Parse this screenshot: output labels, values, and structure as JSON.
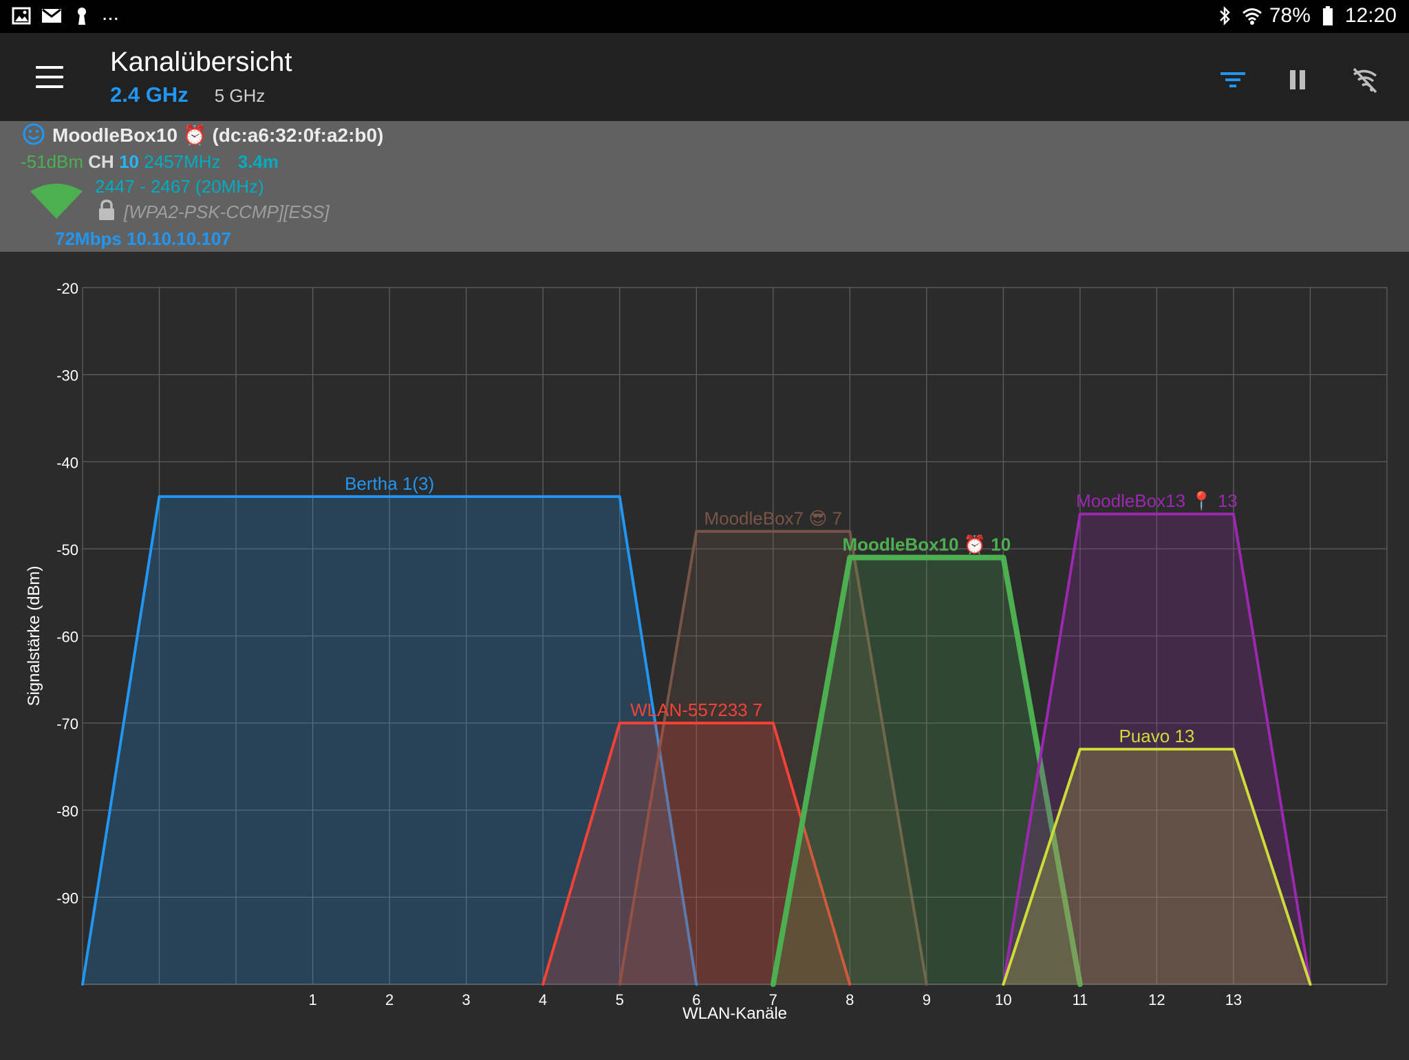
{
  "status_bar": {
    "left_icons": [
      "image-icon",
      "mail-icon",
      "keyhole-icon"
    ],
    "overflow": "...",
    "battery": "78%",
    "time": "12:20"
  },
  "app_bar": {
    "title": "Kanalübersicht",
    "tabs": [
      {
        "label": "2.4 GHz",
        "selected": true
      },
      {
        "label": "5 GHz",
        "selected": false
      }
    ],
    "actions": [
      "filter-icon",
      "pause-icon",
      "wifi-off-icon"
    ]
  },
  "connection": {
    "ssid": "MoodleBox10",
    "alarm_emoji": "⏰",
    "bssid": "(dc:a6:32:0f:a2:b0)",
    "signal": "-51dBm",
    "ch_label": "CH",
    "channel": "10",
    "frequency": "2457MHz",
    "distance": "3.4m",
    "range": "2447 - 2467 (20MHz)",
    "security": "[WPA2-PSK-CCMP][ESS]",
    "rate_ip": "72Mbps 10.10.10.107"
  },
  "colors": {
    "accent": "#2196f3",
    "statusbar_bg": "#000000",
    "appbar_bg": "#212121",
    "panel_bg": "#616161",
    "chart_bg": "#2b2b2b"
  },
  "chart_data": {
    "type": "area",
    "xlabel": "WLAN-Kanäle",
    "ylabel": "Signalstärke (dBm)",
    "xlim": [
      -2,
      15
    ],
    "ylim": [
      -100,
      -20
    ],
    "x_ticks": [
      1,
      2,
      3,
      4,
      5,
      6,
      7,
      8,
      9,
      10,
      11,
      12,
      13
    ],
    "y_ticks": [
      -20,
      -30,
      -40,
      -50,
      -60,
      -70,
      -80,
      -90
    ],
    "grid": true,
    "series": [
      {
        "name": "Bertha 1(3)",
        "label": "Bertha 1(3)",
        "color": "#2196f3",
        "points": [
          [
            -2,
            -100
          ],
          [
            -1,
            -44
          ],
          [
            5,
            -44
          ],
          [
            6,
            -100
          ]
        ],
        "highlight": false
      },
      {
        "name": "MoodleBox7 😎 7",
        "label": "MoodleBox7 😎 7",
        "color": "#795548",
        "points": [
          [
            5,
            -100
          ],
          [
            6,
            -48
          ],
          [
            8,
            -48
          ],
          [
            9,
            -100
          ]
        ],
        "highlight": false
      },
      {
        "name": "WLAN-557233 7",
        "label": "WLAN-557233 7",
        "color": "#f44336",
        "points": [
          [
            4,
            -100
          ],
          [
            5,
            -70
          ],
          [
            7,
            -70
          ],
          [
            8,
            -100
          ]
        ],
        "highlight": false
      },
      {
        "name": "MoodleBox10 ⏰ 10",
        "label": "MoodleBox10 ⏰ 10",
        "color": "#4caf50",
        "points": [
          [
            7,
            -100
          ],
          [
            8,
            -51
          ],
          [
            10,
            -51
          ],
          [
            11,
            -100
          ]
        ],
        "highlight": true
      },
      {
        "name": "MoodleBox13 📍 13",
        "label": "MoodleBox13 📍 13",
        "color": "#9c27b0",
        "points": [
          [
            10,
            -100
          ],
          [
            11,
            -46
          ],
          [
            13,
            -46
          ],
          [
            14,
            -100
          ]
        ],
        "highlight": false
      },
      {
        "name": "Puavo 13",
        "label": "Puavo 13",
        "color": "#cddc39",
        "points": [
          [
            10,
            -100
          ],
          [
            11,
            -73
          ],
          [
            13,
            -73
          ],
          [
            14,
            -100
          ]
        ],
        "highlight": false
      }
    ]
  }
}
